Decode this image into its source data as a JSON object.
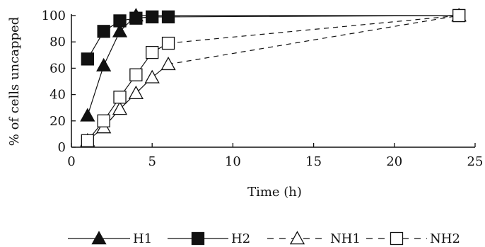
{
  "chart_data": {
    "type": "line",
    "xlabel": "Time (h)",
    "ylabel": "% of cells uncapped",
    "xlim": [
      0,
      25
    ],
    "ylim": [
      0,
      100
    ],
    "xticks": [
      0,
      5,
      10,
      15,
      20,
      25
    ],
    "yticks": [
      0,
      20,
      40,
      60,
      80,
      100
    ],
    "grid": false,
    "legend_position": "bottom",
    "series": [
      {
        "name": "H1",
        "marker": "filled-triangle",
        "line": "solid",
        "color": "#111111",
        "x": [
          1,
          2,
          3,
          4,
          5,
          6,
          24
        ],
        "y": [
          24,
          62,
          88,
          100,
          100,
          100,
          100
        ]
      },
      {
        "name": "H2",
        "marker": "filled-square",
        "line": "solid",
        "color": "#111111",
        "x": [
          1,
          2,
          3,
          4,
          5,
          6,
          24
        ],
        "y": [
          67,
          88,
          96,
          98,
          99,
          99,
          100
        ]
      },
      {
        "name": "NH1",
        "marker": "open-triangle",
        "line": "dashed-after-6h",
        "color": "#111111",
        "x": [
          1,
          2,
          3,
          4,
          5,
          6,
          24
        ],
        "y": [
          5,
          15,
          29,
          41,
          53,
          63,
          100
        ]
      },
      {
        "name": "NH2",
        "marker": "open-square",
        "line": "dashed-after-6h",
        "color": "#111111",
        "x": [
          1,
          2,
          3,
          4,
          5,
          6,
          24
        ],
        "y": [
          5,
          20,
          38,
          55,
          72,
          79,
          100
        ]
      }
    ]
  }
}
